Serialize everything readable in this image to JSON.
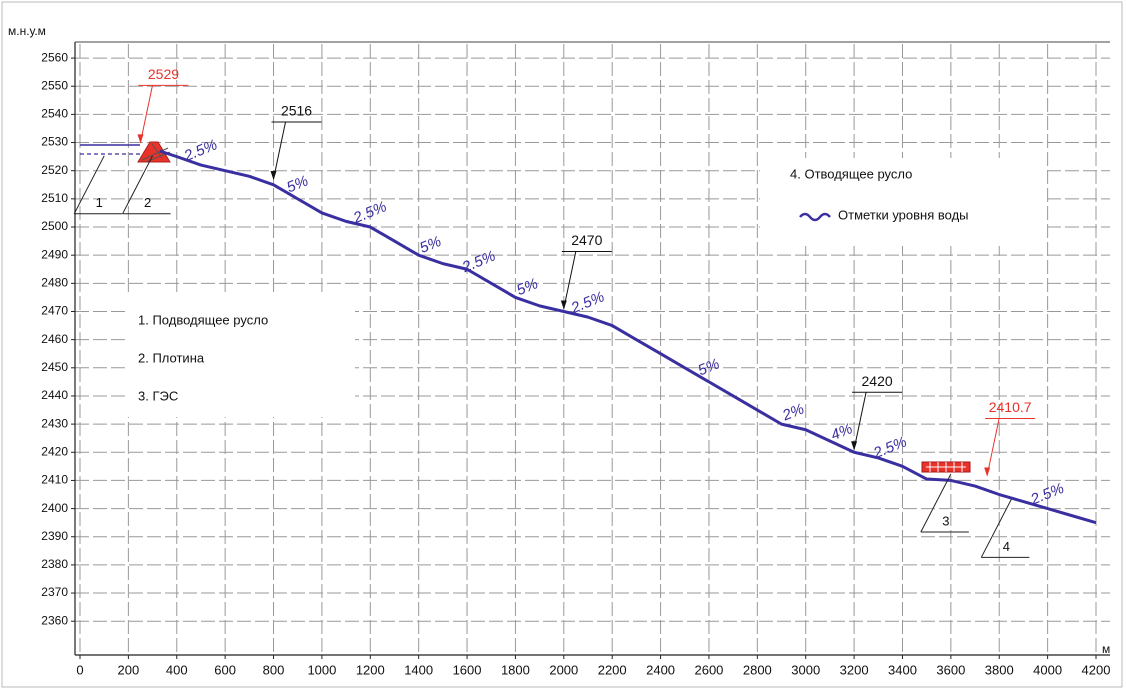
{
  "chart_data": {
    "type": "line",
    "y_unit": "м.н.у.м",
    "x_unit": "м",
    "xlim": [
      0,
      4200
    ],
    "ylim": [
      2348,
      2565
    ],
    "xticks": [
      0,
      200,
      400,
      600,
      800,
      1000,
      1200,
      1400,
      1600,
      1800,
      2000,
      2200,
      2400,
      2600,
      2800,
      3000,
      3200,
      3400,
      3600,
      3800,
      4000,
      4200
    ],
    "yticks": [
      2360,
      2370,
      2380,
      2390,
      2400,
      2410,
      2420,
      2430,
      2440,
      2450,
      2460,
      2470,
      2480,
      2490,
      2500,
      2510,
      2520,
      2530,
      2540,
      2550,
      2560
    ],
    "grid": true,
    "x": [
      330,
      400,
      500,
      600,
      700,
      800,
      900,
      1000,
      1100,
      1200,
      1300,
      1400,
      1500,
      1600,
      1700,
      1800,
      1900,
      2000,
      2100,
      2200,
      2300,
      2400,
      2500,
      2600,
      2700,
      2800,
      2900,
      3000,
      3100,
      3200,
      3300,
      3400,
      3500,
      3600,
      3700,
      3800,
      3900,
      4000,
      4100,
      4200
    ],
    "series": [
      {
        "name": "Отметки уровня воды",
        "color": "#3a2fa0",
        "values": [
          2527,
          2525,
          2522,
          2520,
          2518,
          2515,
          2510,
          2505,
          2502,
          2500,
          2495,
          2490,
          2487,
          2485,
          2480,
          2475,
          2472,
          2470,
          2468,
          2465,
          2460,
          2455,
          2450,
          2445,
          2440,
          2435,
          2430,
          2428,
          2424,
          2420,
          2418,
          2415,
          2410.5,
          2410,
          2408,
          2405,
          2402.5,
          2400,
          2397.5,
          2395
        ]
      }
    ],
    "elevation_marks": [
      {
        "x": 250,
        "y": 2529,
        "color": "#e8322a"
      },
      {
        "x": 800,
        "y": 2516,
        "color": "#111111"
      },
      {
        "x": 2000,
        "y": 2470,
        "color": "#111111"
      },
      {
        "x": 3200,
        "y": 2420,
        "color": "#111111"
      },
      {
        "x": 3750,
        "y": 2410.7,
        "color": "#e8322a"
      }
    ],
    "slopes": [
      {
        "label": "2.5%",
        "x": [
          400,
          600
        ]
      },
      {
        "label": "5%",
        "x": [
          800,
          1000
        ]
      },
      {
        "label": "2.5%",
        "x": [
          1100,
          1300
        ]
      },
      {
        "label": "5%",
        "x": [
          1400,
          1500
        ]
      },
      {
        "label": "2.5%",
        "x": [
          1600,
          1700
        ]
      },
      {
        "label": "5%",
        "x": [
          1800,
          1900
        ]
      },
      {
        "label": "2.5%",
        "x": [
          2000,
          2200
        ]
      },
      {
        "label": "5%",
        "x": [
          2500,
          2700
        ]
      },
      {
        "label": "2%",
        "x": [
          2900,
          3000
        ]
      },
      {
        "label": "4%",
        "x": [
          3100,
          3200
        ]
      },
      {
        "label": "2.5%",
        "x": [
          3300,
          3400
        ]
      },
      {
        "label": "2.5%",
        "x": [
          3900,
          4100
        ]
      }
    ],
    "structures": [
      {
        "number": "1",
        "legend": "1. Подводящее русло",
        "x": 100,
        "y": 2526
      },
      {
        "number": "2",
        "legend": "2. Плотина",
        "x": 300,
        "y": 2526
      },
      {
        "number": "3",
        "legend": "3. ГЭС",
        "x": 3600,
        "y": 2413
      },
      {
        "number": "4",
        "legend": "4. Отводящее русло",
        "x": 3850,
        "y": 2404
      }
    ]
  }
}
